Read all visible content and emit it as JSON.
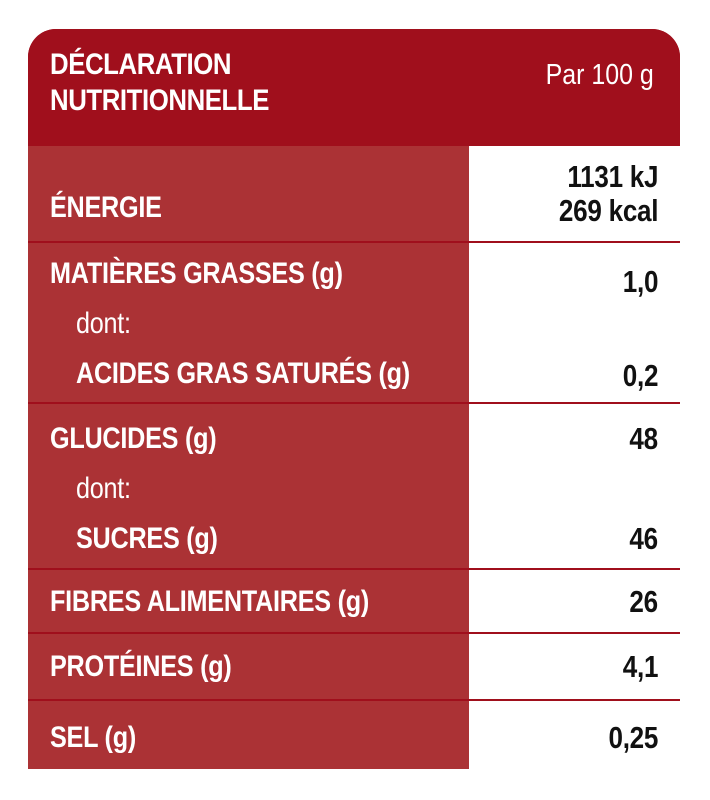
{
  "header": {
    "title_line1": "DÉCLARATION",
    "title_line2": "NUTRITIONNELLE",
    "per": "Par 100 g"
  },
  "rows": {
    "energy": {
      "label": "ÉNERGIE",
      "value_kj": "1131 kJ",
      "value_kcal": "269 kcal"
    },
    "fat": {
      "label": "MATIÈRES GRASSES (g)",
      "value": "1,0",
      "dont": "dont:",
      "sub_label": "ACIDES GRAS SATURÉS (g)",
      "sub_value": "0,2"
    },
    "carbs": {
      "label": "GLUCIDES (g)",
      "value": "48",
      "dont": "dont:",
      "sub_label": "SUCRES (g)",
      "sub_value": "46"
    },
    "fibre": {
      "label": "FIBRES ALIMENTAIRES (g)",
      "value": "26"
    },
    "protein": {
      "label": "PROTÉINES (g)",
      "value": "4,1"
    },
    "salt": {
      "label": "SEL (g)",
      "value": "0,25"
    }
  },
  "colors": {
    "header_red": "#a00f1c",
    "label_red": "#ab3235",
    "value_bg": "#ffffff"
  }
}
